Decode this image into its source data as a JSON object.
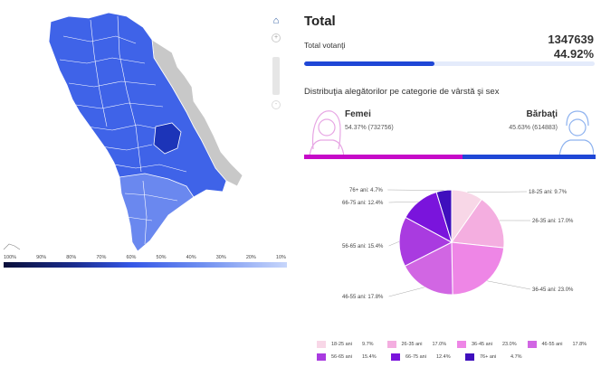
{
  "map": {
    "legend_labels": [
      "100%",
      "90%",
      "80%",
      "70%",
      "60%",
      "50%",
      "40%",
      "30%",
      "20%",
      "10%"
    ],
    "colors": {
      "dark": "#0a0f3a",
      "mid": "#3557e6",
      "light": "#c7d6fb",
      "gray": "#c8c8c8"
    }
  },
  "controls": {
    "home_icon": "home-icon",
    "zoom_in": "+",
    "zoom_out": "-"
  },
  "summary": {
    "title": "Total",
    "voters_label": "Total votanţi",
    "voters_count": "1347639",
    "voters_pct": "44.92%",
    "turnout_fraction": 0.4492
  },
  "distribution": {
    "title": "Distribuţia alegătorilor pe categorie de vârstă şi sex",
    "female_label": "Femei",
    "female_value": "54.37% (732756)",
    "female_fraction": 0.5437,
    "male_label": "Bărbaţi",
    "male_value": "45.63% (614883)",
    "female_color": "#c60ac8",
    "male_color": "#1f47d6"
  },
  "chart_data": {
    "type": "pie",
    "slices": [
      {
        "label": "18-25 ani",
        "value": 9.7,
        "display": "18-25 ani: 9.7%",
        "legend_value": "9.7%",
        "color": "#f8d7e7"
      },
      {
        "label": "26-35 ani",
        "value": 17.0,
        "display": "26-35 ani: 17.0%",
        "legend_value": "17.0%",
        "color": "#f4aee0"
      },
      {
        "label": "36-45 ani",
        "value": 23.0,
        "display": "36-45 ani: 23.0%",
        "legend_value": "23.0%",
        "color": "#ee86e6"
      },
      {
        "label": "46-55 ani",
        "value": 17.8,
        "display": "46-55 ani: 17.8%",
        "legend_value": "17.8%",
        "color": "#d166e3"
      },
      {
        "label": "56-65 ani",
        "value": 15.4,
        "display": "56-65 ani: 15.4%",
        "legend_value": "15.4%",
        "color": "#a93be0"
      },
      {
        "label": "66-75 ani",
        "value": 12.4,
        "display": "66-75 ani: 12.4%",
        "legend_value": "12.4%",
        "color": "#7a14dc"
      },
      {
        "label": "76+ ani",
        "value": 4.7,
        "display": "76+ ani: 4.7%",
        "legend_value": "4.7%",
        "color": "#3f0fbd"
      }
    ]
  }
}
